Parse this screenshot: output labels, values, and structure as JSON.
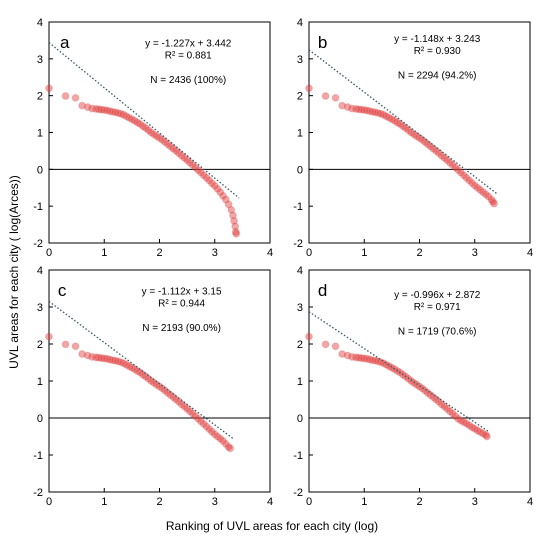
{
  "figure": {
    "ylabel": "UVL areas for each city ( log(Arces))",
    "xlabel": "Ranking of UVL areas for each city (log)"
  },
  "chart_data": [
    {
      "type": "scatter",
      "panel": "a",
      "equation": "y = -1.227x + 3.442",
      "r2": "R² = 0.881",
      "n": "N = 2436 (100%)",
      "xlim": [
        0,
        4
      ],
      "ylim": [
        -2,
        4
      ],
      "xticks": [
        "0",
        "1",
        "2",
        "3",
        "4"
      ],
      "yticks": [
        "-2",
        "-1",
        "0",
        "1",
        "2",
        "3",
        "4"
      ],
      "grid": false,
      "trendline": {
        "slope": -1.227,
        "intercept": 3.442,
        "style": "dotted",
        "color": "#3a5a68"
      },
      "marker_color": "#e03c3c",
      "points": [
        [
          0.0,
          2.2
        ],
        [
          0.3,
          1.99
        ],
        [
          0.48,
          1.94
        ],
        [
          0.6,
          1.73
        ],
        [
          0.7,
          1.69
        ],
        [
          0.78,
          1.65
        ],
        [
          0.85,
          1.64
        ],
        [
          0.9,
          1.63
        ],
        [
          0.95,
          1.62
        ],
        [
          1.0,
          1.61
        ],
        [
          1.05,
          1.6
        ],
        [
          1.1,
          1.58
        ],
        [
          1.15,
          1.56
        ],
        [
          1.2,
          1.55
        ],
        [
          1.25,
          1.53
        ],
        [
          1.3,
          1.51
        ],
        [
          1.35,
          1.48
        ],
        [
          1.4,
          1.44
        ],
        [
          1.45,
          1.4
        ],
        [
          1.5,
          1.36
        ],
        [
          1.55,
          1.32
        ],
        [
          1.6,
          1.27
        ],
        [
          1.65,
          1.23
        ],
        [
          1.7,
          1.17
        ],
        [
          1.75,
          1.12
        ],
        [
          1.8,
          1.06
        ],
        [
          1.85,
          1.0
        ],
        [
          1.9,
          0.95
        ],
        [
          1.95,
          0.9
        ],
        [
          2.0,
          0.85
        ],
        [
          2.05,
          0.8
        ],
        [
          2.1,
          0.74
        ],
        [
          2.15,
          0.68
        ],
        [
          2.2,
          0.62
        ],
        [
          2.25,
          0.56
        ],
        [
          2.3,
          0.5
        ],
        [
          2.35,
          0.44
        ],
        [
          2.4,
          0.37
        ],
        [
          2.45,
          0.31
        ],
        [
          2.5,
          0.25
        ],
        [
          2.55,
          0.18
        ],
        [
          2.6,
          0.12
        ],
        [
          2.65,
          0.05
        ],
        [
          2.7,
          -0.02
        ],
        [
          2.75,
          -0.09
        ],
        [
          2.8,
          -0.16
        ],
        [
          2.85,
          -0.23
        ],
        [
          2.9,
          -0.3
        ],
        [
          2.95,
          -0.38
        ],
        [
          3.0,
          -0.45
        ],
        [
          3.05,
          -0.53
        ],
        [
          3.1,
          -0.62
        ],
        [
          3.15,
          -0.72
        ],
        [
          3.2,
          -0.82
        ],
        [
          3.25,
          -0.95
        ],
        [
          3.3,
          -1.1
        ],
        [
          3.33,
          -1.25
        ],
        [
          3.35,
          -1.4
        ],
        [
          3.37,
          -1.55
        ],
        [
          3.38,
          -1.7
        ],
        [
          3.39,
          -1.75
        ]
      ]
    },
    {
      "type": "scatter",
      "panel": "b",
      "equation": "y = -1.148x + 3.243",
      "r2": "R² = 0.930",
      "n": "N = 2294 (94.2%)",
      "xlim": [
        0,
        4
      ],
      "ylim": [
        -2,
        4
      ],
      "xticks": [
        "0",
        "1",
        "2",
        "3",
        "4"
      ],
      "yticks": [
        "-2",
        "-1",
        "0",
        "1",
        "2",
        "3",
        "4"
      ],
      "grid": false,
      "trendline": {
        "slope": -1.148,
        "intercept": 3.243,
        "style": "dotted",
        "color": "#3a5a68"
      },
      "marker_color": "#e03c3c",
      "points": [
        [
          0.0,
          2.2
        ],
        [
          0.3,
          1.99
        ],
        [
          0.48,
          1.94
        ],
        [
          0.6,
          1.73
        ],
        [
          0.7,
          1.69
        ],
        [
          0.78,
          1.65
        ],
        [
          0.85,
          1.64
        ],
        [
          0.9,
          1.63
        ],
        [
          0.95,
          1.62
        ],
        [
          1.0,
          1.61
        ],
        [
          1.05,
          1.6
        ],
        [
          1.1,
          1.58
        ],
        [
          1.15,
          1.56
        ],
        [
          1.2,
          1.55
        ],
        [
          1.25,
          1.53
        ],
        [
          1.3,
          1.51
        ],
        [
          1.35,
          1.48
        ],
        [
          1.4,
          1.44
        ],
        [
          1.45,
          1.4
        ],
        [
          1.5,
          1.36
        ],
        [
          1.55,
          1.32
        ],
        [
          1.6,
          1.27
        ],
        [
          1.65,
          1.23
        ],
        [
          1.7,
          1.17
        ],
        [
          1.75,
          1.12
        ],
        [
          1.8,
          1.06
        ],
        [
          1.85,
          1.0
        ],
        [
          1.9,
          0.95
        ],
        [
          1.95,
          0.9
        ],
        [
          2.0,
          0.85
        ],
        [
          2.05,
          0.8
        ],
        [
          2.1,
          0.74
        ],
        [
          2.15,
          0.68
        ],
        [
          2.2,
          0.62
        ],
        [
          2.25,
          0.56
        ],
        [
          2.3,
          0.5
        ],
        [
          2.35,
          0.44
        ],
        [
          2.4,
          0.37
        ],
        [
          2.45,
          0.31
        ],
        [
          2.5,
          0.25
        ],
        [
          2.55,
          0.18
        ],
        [
          2.6,
          0.12
        ],
        [
          2.65,
          0.05
        ],
        [
          2.7,
          -0.02
        ],
        [
          2.75,
          -0.09
        ],
        [
          2.8,
          -0.16
        ],
        [
          2.85,
          -0.23
        ],
        [
          2.9,
          -0.3
        ],
        [
          2.95,
          -0.37
        ],
        [
          3.0,
          -0.44
        ],
        [
          3.05,
          -0.5
        ],
        [
          3.1,
          -0.56
        ],
        [
          3.15,
          -0.62
        ],
        [
          3.2,
          -0.68
        ],
        [
          3.25,
          -0.74
        ],
        [
          3.3,
          -0.82
        ],
        [
          3.33,
          -0.88
        ],
        [
          3.35,
          -0.93
        ]
      ]
    },
    {
      "type": "scatter",
      "panel": "c",
      "equation": "y = -1.112x + 3.15",
      "r2": "R² = 0.944",
      "n": "N = 2193 (90.0%)",
      "xlim": [
        0,
        4
      ],
      "ylim": [
        -2,
        4
      ],
      "xticks": [
        "0",
        "1",
        "2",
        "3",
        "4"
      ],
      "yticks": [
        "-2",
        "-1",
        "0",
        "1",
        "2",
        "3",
        "4"
      ],
      "grid": false,
      "trendline": {
        "slope": -1.112,
        "intercept": 3.15,
        "style": "dotted",
        "color": "#3a5a68"
      },
      "marker_color": "#e03c3c",
      "points": [
        [
          0.0,
          2.2
        ],
        [
          0.3,
          1.99
        ],
        [
          0.48,
          1.94
        ],
        [
          0.6,
          1.73
        ],
        [
          0.7,
          1.69
        ],
        [
          0.78,
          1.65
        ],
        [
          0.85,
          1.64
        ],
        [
          0.9,
          1.63
        ],
        [
          0.95,
          1.62
        ],
        [
          1.0,
          1.61
        ],
        [
          1.05,
          1.6
        ],
        [
          1.1,
          1.58
        ],
        [
          1.15,
          1.56
        ],
        [
          1.2,
          1.55
        ],
        [
          1.25,
          1.53
        ],
        [
          1.3,
          1.51
        ],
        [
          1.35,
          1.48
        ],
        [
          1.4,
          1.44
        ],
        [
          1.45,
          1.4
        ],
        [
          1.5,
          1.36
        ],
        [
          1.55,
          1.32
        ],
        [
          1.6,
          1.27
        ],
        [
          1.65,
          1.23
        ],
        [
          1.7,
          1.17
        ],
        [
          1.75,
          1.12
        ],
        [
          1.8,
          1.06
        ],
        [
          1.85,
          1.0
        ],
        [
          1.9,
          0.95
        ],
        [
          1.95,
          0.9
        ],
        [
          2.0,
          0.85
        ],
        [
          2.05,
          0.8
        ],
        [
          2.1,
          0.74
        ],
        [
          2.15,
          0.68
        ],
        [
          2.2,
          0.62
        ],
        [
          2.25,
          0.56
        ],
        [
          2.3,
          0.5
        ],
        [
          2.35,
          0.44
        ],
        [
          2.4,
          0.37
        ],
        [
          2.45,
          0.31
        ],
        [
          2.5,
          0.25
        ],
        [
          2.55,
          0.18
        ],
        [
          2.6,
          0.12
        ],
        [
          2.65,
          0.05
        ],
        [
          2.7,
          -0.02
        ],
        [
          2.75,
          -0.09
        ],
        [
          2.8,
          -0.16
        ],
        [
          2.85,
          -0.23
        ],
        [
          2.9,
          -0.3
        ],
        [
          2.95,
          -0.37
        ],
        [
          3.0,
          -0.44
        ],
        [
          3.05,
          -0.5
        ],
        [
          3.1,
          -0.56
        ],
        [
          3.15,
          -0.62
        ],
        [
          3.2,
          -0.7
        ],
        [
          3.25,
          -0.78
        ],
        [
          3.28,
          -0.82
        ]
      ]
    },
    {
      "type": "scatter",
      "panel": "d",
      "equation": "y = -0.996x + 2.872",
      "r2": "R² = 0.971",
      "n": "N = 1719 (70.6%)",
      "xlim": [
        0,
        4
      ],
      "ylim": [
        -2,
        4
      ],
      "xticks": [
        "0",
        "1",
        "2",
        "3",
        "4"
      ],
      "yticks": [
        "-2",
        "-1",
        "0",
        "1",
        "2",
        "3",
        "4"
      ],
      "grid": false,
      "trendline": {
        "slope": -0.996,
        "intercept": 2.872,
        "style": "dotted",
        "color": "#3a5a68"
      },
      "marker_color": "#e03c3c",
      "points": [
        [
          0.0,
          2.2
        ],
        [
          0.3,
          1.99
        ],
        [
          0.48,
          1.94
        ],
        [
          0.6,
          1.73
        ],
        [
          0.7,
          1.69
        ],
        [
          0.78,
          1.65
        ],
        [
          0.85,
          1.64
        ],
        [
          0.9,
          1.63
        ],
        [
          0.95,
          1.62
        ],
        [
          1.0,
          1.61
        ],
        [
          1.05,
          1.6
        ],
        [
          1.1,
          1.58
        ],
        [
          1.15,
          1.56
        ],
        [
          1.2,
          1.55
        ],
        [
          1.25,
          1.53
        ],
        [
          1.3,
          1.51
        ],
        [
          1.35,
          1.48
        ],
        [
          1.4,
          1.44
        ],
        [
          1.45,
          1.4
        ],
        [
          1.5,
          1.36
        ],
        [
          1.55,
          1.32
        ],
        [
          1.6,
          1.27
        ],
        [
          1.65,
          1.23
        ],
        [
          1.7,
          1.17
        ],
        [
          1.75,
          1.12
        ],
        [
          1.8,
          1.06
        ],
        [
          1.85,
          1.0
        ],
        [
          1.9,
          0.95
        ],
        [
          1.95,
          0.9
        ],
        [
          2.0,
          0.85
        ],
        [
          2.05,
          0.8
        ],
        [
          2.1,
          0.74
        ],
        [
          2.15,
          0.68
        ],
        [
          2.2,
          0.62
        ],
        [
          2.25,
          0.56
        ],
        [
          2.3,
          0.5
        ],
        [
          2.35,
          0.44
        ],
        [
          2.4,
          0.37
        ],
        [
          2.45,
          0.31
        ],
        [
          2.5,
          0.25
        ],
        [
          2.55,
          0.18
        ],
        [
          2.6,
          0.12
        ],
        [
          2.65,
          0.05
        ],
        [
          2.7,
          -0.02
        ],
        [
          2.75,
          -0.07
        ],
        [
          2.8,
          -0.11
        ],
        [
          2.85,
          -0.15
        ],
        [
          2.9,
          -0.2
        ],
        [
          2.95,
          -0.25
        ],
        [
          3.0,
          -0.29
        ],
        [
          3.05,
          -0.34
        ],
        [
          3.1,
          -0.38
        ],
        [
          3.15,
          -0.42
        ],
        [
          3.2,
          -0.46
        ],
        [
          3.22,
          -0.5
        ]
      ]
    }
  ]
}
